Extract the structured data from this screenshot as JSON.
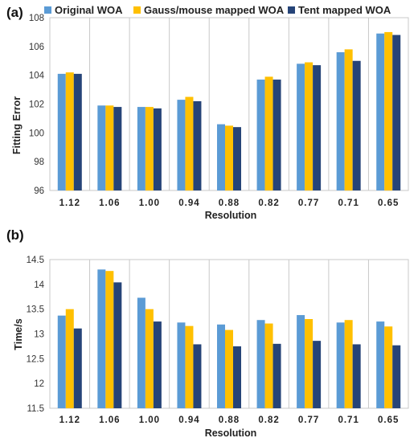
{
  "colors": {
    "series": [
      "#5b9bd5",
      "#ffc000",
      "#264478"
    ],
    "grid": "#c8c8c8",
    "text": "#222222"
  },
  "legend": {
    "items": [
      "Original WOA",
      "Gauss/mouse mapped WOA",
      "Tent mapped WOA"
    ],
    "placement": "top"
  },
  "chart_data": [
    {
      "type": "bar",
      "panel_label": "(a)",
      "categories": [
        "1.12",
        "1.06",
        "1.00",
        "0.94",
        "0.88",
        "0.82",
        "0.77",
        "0.71",
        "0.65"
      ],
      "series": [
        {
          "name": "Original WOA",
          "values": [
            104.1,
            101.9,
            101.8,
            102.3,
            100.6,
            103.7,
            104.8,
            105.6,
            106.9
          ]
        },
        {
          "name": "Gauss/mouse mapped WOA",
          "values": [
            104.2,
            101.9,
            101.8,
            102.5,
            100.5,
            103.9,
            104.9,
            105.8,
            107.0
          ]
        },
        {
          "name": "Tent mapped WOA",
          "values": [
            104.1,
            101.8,
            101.7,
            102.2,
            100.4,
            103.7,
            104.7,
            105.0,
            106.8
          ]
        }
      ],
      "xlabel": "Resolution",
      "ylabel": "Fitting Error",
      "ylim": [
        96,
        108
      ],
      "yticks": [
        "96",
        "98",
        "100",
        "102",
        "104",
        "106",
        "108"
      ],
      "grid": "vertical",
      "legend": "top"
    },
    {
      "type": "bar",
      "panel_label": "(b)",
      "categories": [
        "1.12",
        "1.06",
        "1.00",
        "0.94",
        "0.88",
        "0.82",
        "0.77",
        "0.71",
        "0.65"
      ],
      "series": [
        {
          "name": "Original WOA",
          "values": [
            13.37,
            14.3,
            13.73,
            13.23,
            13.19,
            13.28,
            13.38,
            13.23,
            13.25
          ]
        },
        {
          "name": "Gauss/mouse mapped WOA",
          "values": [
            13.5,
            14.27,
            13.5,
            13.16,
            13.08,
            13.21,
            13.3,
            13.28,
            13.15
          ]
        },
        {
          "name": "Tent mapped WOA",
          "values": [
            13.11,
            14.04,
            13.25,
            12.79,
            12.75,
            12.8,
            12.86,
            12.79,
            12.77
          ]
        }
      ],
      "xlabel": "Resolution",
      "ylabel": "Time/s",
      "ylim": [
        11.5,
        14.5
      ],
      "yticks": [
        "11.5",
        "12",
        "12.5",
        "13",
        "13.5",
        "14",
        "14.5"
      ],
      "grid": "vertical",
      "legend": "none"
    }
  ]
}
